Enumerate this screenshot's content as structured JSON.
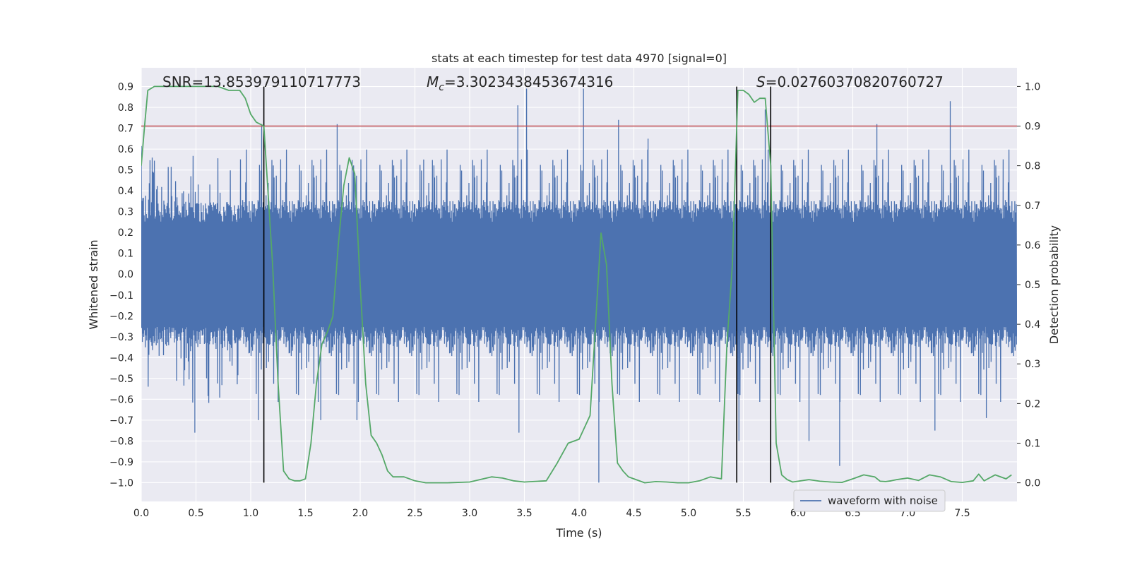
{
  "chart_data": {
    "type": "line",
    "title": "stats at each timestep for test data 4970 [signal=0]",
    "xlabel": "Time (s)",
    "ylabel": "Whitened strain",
    "y2label": "Detection probability",
    "xlim": [
      0.0,
      8.0
    ],
    "ylim": [
      -1.09,
      0.99
    ],
    "y2lim": [
      -0.047,
      1.047
    ],
    "grid": true,
    "x_ticks": [
      "0.0",
      "0.5",
      "1.0",
      "1.5",
      "2.0",
      "2.5",
      "3.0",
      "3.5",
      "4.0",
      "4.5",
      "5.0",
      "5.5",
      "6.0",
      "6.5",
      "7.0",
      "7.5"
    ],
    "y_ticks": [
      "0.9",
      "0.8",
      "0.7",
      "0.6",
      "0.5",
      "0.4",
      "0.3",
      "0.2",
      "0.1",
      "0.0",
      "-0.1",
      "-0.2",
      "-0.3",
      "-0.4",
      "-0.5",
      "-0.6",
      "-0.7",
      "-0.8",
      "-0.9",
      "-1.0"
    ],
    "y2_ticks": [
      "1.0",
      "0.9",
      "0.8",
      "0.7",
      "0.6",
      "0.5",
      "0.4",
      "0.3",
      "0.2",
      "0.1",
      "0.0"
    ],
    "annotations": {
      "snr": "SNR=13.853979110717773",
      "mc_symbol": "M",
      "mc_sub": "c",
      "mc_value": "=3.3023438453674316",
      "s_symbol": "S",
      "s_value": "=0.02760370820760727"
    },
    "legend": {
      "label": "waveform with noise",
      "placement": "lower right"
    },
    "threshold": {
      "value": 0.9,
      "axis": "right",
      "color": "#c44e52"
    },
    "vertical_lines": [
      1.12,
      5.44,
      5.75
    ],
    "vertical_line_range": [
      -1.0,
      0.9
    ],
    "waveform": {
      "name": "waveform with noise",
      "color": "#4c72b0",
      "peaks_pos": [
        [
          0.52,
          0.43
        ],
        [
          1.1,
          0.72
        ],
        [
          1.79,
          0.72
        ],
        [
          2.58,
          0.55
        ],
        [
          3.44,
          0.81
        ],
        [
          3.52,
          0.89
        ],
        [
          4.04,
          0.89
        ],
        [
          4.36,
          0.74
        ],
        [
          4.63,
          0.65
        ],
        [
          5.7,
          0.79
        ],
        [
          6.72,
          0.72
        ],
        [
          7.39,
          0.83
        ]
      ],
      "peaks_neg": [
        [
          0.49,
          -0.76
        ],
        [
          1.07,
          -0.7
        ],
        [
          1.64,
          -0.7
        ],
        [
          1.97,
          -0.7
        ],
        [
          3.45,
          -0.76
        ],
        [
          4.18,
          -1.0
        ],
        [
          5.46,
          -0.8
        ],
        [
          6.1,
          -0.8
        ],
        [
          6.38,
          -0.92
        ],
        [
          7.25,
          -0.75
        ],
        [
          7.72,
          -0.69
        ]
      ]
    },
    "detection_probability": {
      "color": "#55a868",
      "x": [
        0.0,
        0.03,
        0.06,
        0.12,
        0.3,
        0.5,
        0.7,
        0.8,
        0.9,
        0.95,
        1.0,
        1.05,
        1.12,
        1.2,
        1.25,
        1.3,
        1.35,
        1.4,
        1.45,
        1.5,
        1.55,
        1.6,
        1.65,
        1.7,
        1.75,
        1.8,
        1.85,
        1.9,
        1.95,
        2.0,
        2.05,
        2.1,
        2.15,
        2.2,
        2.25,
        2.3,
        2.4,
        2.5,
        2.6,
        2.8,
        3.0,
        3.2,
        3.3,
        3.4,
        3.5,
        3.7,
        3.8,
        3.9,
        4.0,
        4.1,
        4.15,
        4.2,
        4.25,
        4.3,
        4.35,
        4.4,
        4.45,
        4.5,
        4.6,
        4.7,
        4.8,
        4.9,
        5.0,
        5.1,
        5.2,
        5.3,
        5.35,
        5.4,
        5.45,
        5.5,
        5.55,
        5.6,
        5.65,
        5.7,
        5.75,
        5.8,
        5.85,
        5.9,
        5.95,
        6.0,
        6.1,
        6.2,
        6.3,
        6.4,
        6.5,
        6.6,
        6.7,
        6.75,
        6.8,
        6.85,
        6.9,
        7.0,
        7.1,
        7.2,
        7.3,
        7.4,
        7.5,
        7.6,
        7.65,
        7.7,
        7.8,
        7.9,
        7.95
      ],
      "y": [
        0.8,
        0.9,
        0.99,
        1.0,
        1.0,
        1.0,
        1.0,
        0.99,
        0.99,
        0.97,
        0.93,
        0.91,
        0.9,
        0.55,
        0.25,
        0.03,
        0.01,
        0.005,
        0.005,
        0.01,
        0.1,
        0.25,
        0.35,
        0.38,
        0.42,
        0.6,
        0.75,
        0.82,
        0.78,
        0.5,
        0.25,
        0.12,
        0.1,
        0.07,
        0.03,
        0.015,
        0.015,
        0.005,
        0.0,
        0.0,
        0.002,
        0.015,
        0.012,
        0.005,
        0.002,
        0.005,
        0.05,
        0.1,
        0.11,
        0.17,
        0.4,
        0.63,
        0.55,
        0.25,
        0.05,
        0.03,
        0.015,
        0.01,
        0.0,
        0.003,
        0.002,
        0.0,
        0.0,
        0.005,
        0.015,
        0.01,
        0.35,
        0.55,
        0.99,
        0.99,
        0.98,
        0.96,
        0.97,
        0.97,
        0.8,
        0.1,
        0.02,
        0.008,
        0.002,
        0.004,
        0.008,
        0.004,
        0.002,
        0.001,
        0.01,
        0.02,
        0.015,
        0.004,
        0.003,
        0.005,
        0.008,
        0.012,
        0.006,
        0.02,
        0.015,
        0.003,
        0.001,
        0.005,
        0.022,
        0.005,
        0.02,
        0.01,
        0.02
      ]
    }
  }
}
